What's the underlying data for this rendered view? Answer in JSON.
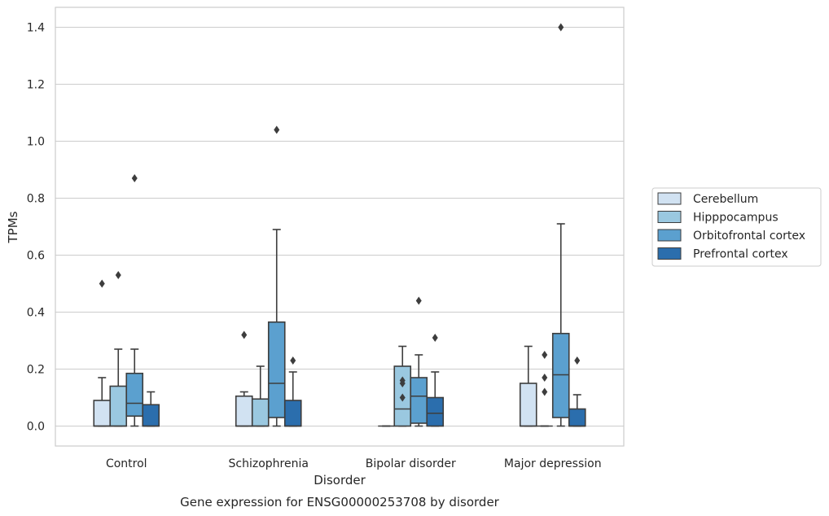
{
  "chart_data": {
    "type": "box",
    "caption": "Gene expression for ENSG00000253708 by disorder",
    "xlabel": "Disorder",
    "ylabel": "TPMs",
    "ylim": [
      -0.07,
      1.47
    ],
    "yticks": [
      0.0,
      0.2,
      0.4,
      0.6,
      0.8,
      1.0,
      1.2,
      1.4
    ],
    "ytick_labels": [
      "0.0",
      "0.2",
      "0.4",
      "0.6",
      "0.8",
      "1.0",
      "1.2",
      "1.4"
    ],
    "grid": "horizontal",
    "legend_position": "right",
    "categories": [
      "Control",
      "Schizophrenia",
      "Bipolar disorder",
      "Major depression"
    ],
    "series": [
      {
        "name": "Cerebellum",
        "color": "#d1e2f2",
        "boxes": [
          {
            "q1": 0.0,
            "median": 0.0,
            "q3": 0.09,
            "whisker_low": 0.0,
            "whisker_high": 0.17,
            "outliers": [
              0.5
            ]
          },
          {
            "q1": 0.0,
            "median": 0.0,
            "q3": 0.105,
            "whisker_low": 0.0,
            "whisker_high": 0.12,
            "outliers": [
              0.32
            ]
          },
          {
            "q1": 0.0,
            "median": 0.0,
            "q3": 0.0,
            "whisker_low": 0.0,
            "whisker_high": 0.0,
            "outliers": []
          },
          {
            "q1": 0.0,
            "median": 0.0,
            "q3": 0.15,
            "whisker_low": 0.0,
            "whisker_high": 0.28,
            "outliers": []
          }
        ]
      },
      {
        "name": "Hipppocampus",
        "color": "#9ac8e0",
        "boxes": [
          {
            "q1": 0.0,
            "median": 0.0,
            "q3": 0.14,
            "whisker_low": 0.0,
            "whisker_high": 0.27,
            "outliers": [
              0.53
            ]
          },
          {
            "q1": 0.0,
            "median": 0.0,
            "q3": 0.095,
            "whisker_low": 0.0,
            "whisker_high": 0.21,
            "outliers": []
          },
          {
            "q1": 0.0,
            "median": 0.06,
            "q3": 0.21,
            "whisker_low": 0.0,
            "whisker_high": 0.28,
            "outliers": [
              0.16,
              0.15,
              0.1
            ]
          },
          {
            "q1": 0.0,
            "median": 0.0,
            "q3": 0.0,
            "whisker_low": 0.0,
            "whisker_high": 0.0,
            "outliers": [
              0.25,
              0.17,
              0.12
            ]
          }
        ]
      },
      {
        "name": "Orbitofrontal cortex",
        "color": "#5ba0cf",
        "boxes": [
          {
            "q1": 0.035,
            "median": 0.08,
            "q3": 0.185,
            "whisker_low": 0.0,
            "whisker_high": 0.27,
            "outliers": [
              0.87
            ]
          },
          {
            "q1": 0.03,
            "median": 0.15,
            "q3": 0.365,
            "whisker_low": 0.0,
            "whisker_high": 0.69,
            "outliers": [
              1.04
            ]
          },
          {
            "q1": 0.01,
            "median": 0.105,
            "q3": 0.17,
            "whisker_low": 0.0,
            "whisker_high": 0.25,
            "outliers": [
              0.44
            ]
          },
          {
            "q1": 0.03,
            "median": 0.18,
            "q3": 0.325,
            "whisker_low": 0.0,
            "whisker_high": 0.71,
            "outliers": [
              1.4
            ]
          }
        ]
      },
      {
        "name": "Prefrontal cortex",
        "color": "#2b6ead",
        "boxes": [
          {
            "q1": 0.0,
            "median": 0.0,
            "q3": 0.075,
            "whisker_low": 0.0,
            "whisker_high": 0.12,
            "outliers": []
          },
          {
            "q1": 0.0,
            "median": 0.0,
            "q3": 0.09,
            "whisker_low": 0.0,
            "whisker_high": 0.19,
            "outliers": [
              0.23
            ]
          },
          {
            "q1": 0.0,
            "median": 0.045,
            "q3": 0.1,
            "whisker_low": 0.0,
            "whisker_high": 0.19,
            "outliers": [
              0.31
            ]
          },
          {
            "q1": 0.0,
            "median": 0.0,
            "q3": 0.06,
            "whisker_low": 0.0,
            "whisker_high": 0.11,
            "outliers": [
              0.23
            ]
          }
        ]
      }
    ]
  }
}
